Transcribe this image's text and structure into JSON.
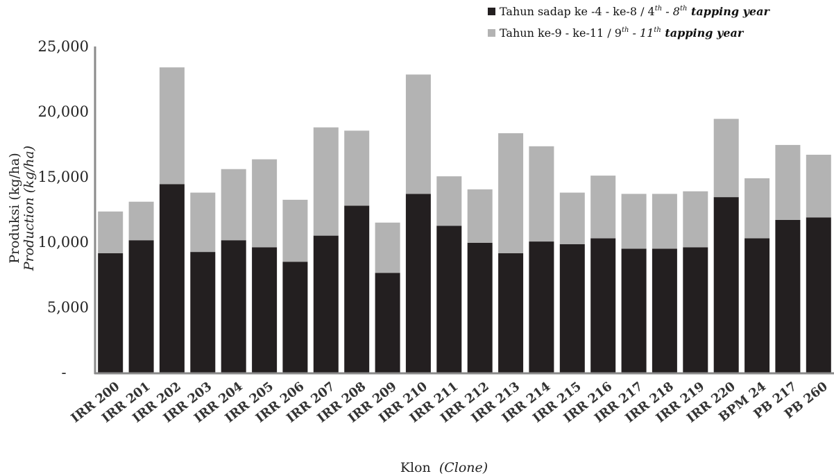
{
  "chart_data": {
    "type": "bar",
    "stacked": true,
    "categories": [
      "IRR 200",
      "IRR 201",
      "IRR 202",
      "IRR 203",
      "IRR 204",
      "IRR 205",
      "IRR 206",
      "IRR 207",
      "IRR 208",
      "IRR 209",
      "IRR 210",
      "IRR 211",
      "IRR 212",
      "IRR 213",
      "IRR 214",
      "IRR 215",
      "IRR 216",
      "IRR 217",
      "IRR 218",
      "IRR 219",
      "IRR 220",
      "BPM 24",
      "PB 217",
      "PB 260"
    ],
    "series": [
      {
        "name": "Tahun sadap ke -4 - ke-8 / 4th - 8th tapping year",
        "color": "#231f20",
        "values": [
          9150,
          10150,
          14450,
          9250,
          10150,
          9600,
          8500,
          10500,
          12800,
          7650,
          13700,
          11250,
          9950,
          9150,
          10050,
          9850,
          10300,
          9500,
          9500,
          9600,
          13450,
          10300,
          11700,
          11900
        ]
      },
      {
        "name": "Tahun ke-9 - ke-11 / 9th - 11th tapping year",
        "color": "#b3b3b3",
        "values": [
          3200,
          2950,
          8950,
          4550,
          5450,
          6750,
          4750,
          8300,
          5750,
          3850,
          9150,
          3800,
          4100,
          9200,
          7300,
          3950,
          4800,
          4200,
          4200,
          4300,
          6000,
          4600,
          5750,
          4800
        ]
      }
    ],
    "ylim": [
      0,
      25000
    ],
    "yticks": [
      0,
      5000,
      10000,
      15000,
      20000,
      25000
    ],
    "ytick_labels": [
      "-",
      "5,000",
      "10,000",
      "15,000",
      "20,000",
      "25,000"
    ],
    "ylabel_line1": "Produksi (kg/ha)",
    "ylabel_line2": "Production (kg/ha)",
    "xlabel_main": "Klon",
    "xlabel_italic": "(Clone)",
    "legend_position": "top-right",
    "legend": [
      {
        "main": "Tahun sadap ke -4 - ke-8 / 4",
        "sup1": "th",
        "mid": "  - 8",
        "sup2": "th",
        "tail": " tapping year"
      },
      {
        "main": "Tahun ke-9 - ke-11 / 9",
        "sup1": "th",
        "mid": " - 11",
        "sup2": "th",
        "tail": " tapping year"
      }
    ],
    "grid": false
  }
}
